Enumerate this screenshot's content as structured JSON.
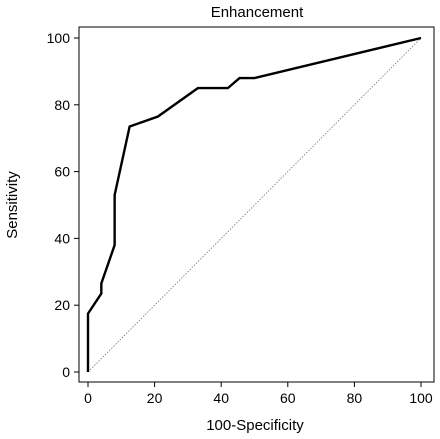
{
  "chart_data": {
    "type": "line",
    "title": "Enhancement",
    "xlabel": "100-Specificity",
    "ylabel": "Sensitivity",
    "xlim": [
      0,
      100
    ],
    "ylim": [
      0,
      100
    ],
    "xticks": [
      0,
      20,
      40,
      60,
      80,
      100
    ],
    "yticks": [
      0,
      20,
      40,
      60,
      80,
      100
    ],
    "grid": false,
    "legend": "none",
    "series": [
      {
        "style": "solid",
        "color": "#000000",
        "x": [
          0,
          0,
          4,
          4,
          8,
          8,
          12.5,
          21,
          33,
          42,
          45.5,
          50,
          100
        ],
        "y": [
          0,
          17.5,
          23.5,
          26.5,
          38,
          53,
          73.5,
          76.5,
          85,
          85,
          88,
          88,
          100
        ]
      },
      {
        "style": "dotted",
        "color": "#777777",
        "x": [
          0,
          100
        ],
        "y": [
          0,
          100
        ]
      }
    ]
  }
}
